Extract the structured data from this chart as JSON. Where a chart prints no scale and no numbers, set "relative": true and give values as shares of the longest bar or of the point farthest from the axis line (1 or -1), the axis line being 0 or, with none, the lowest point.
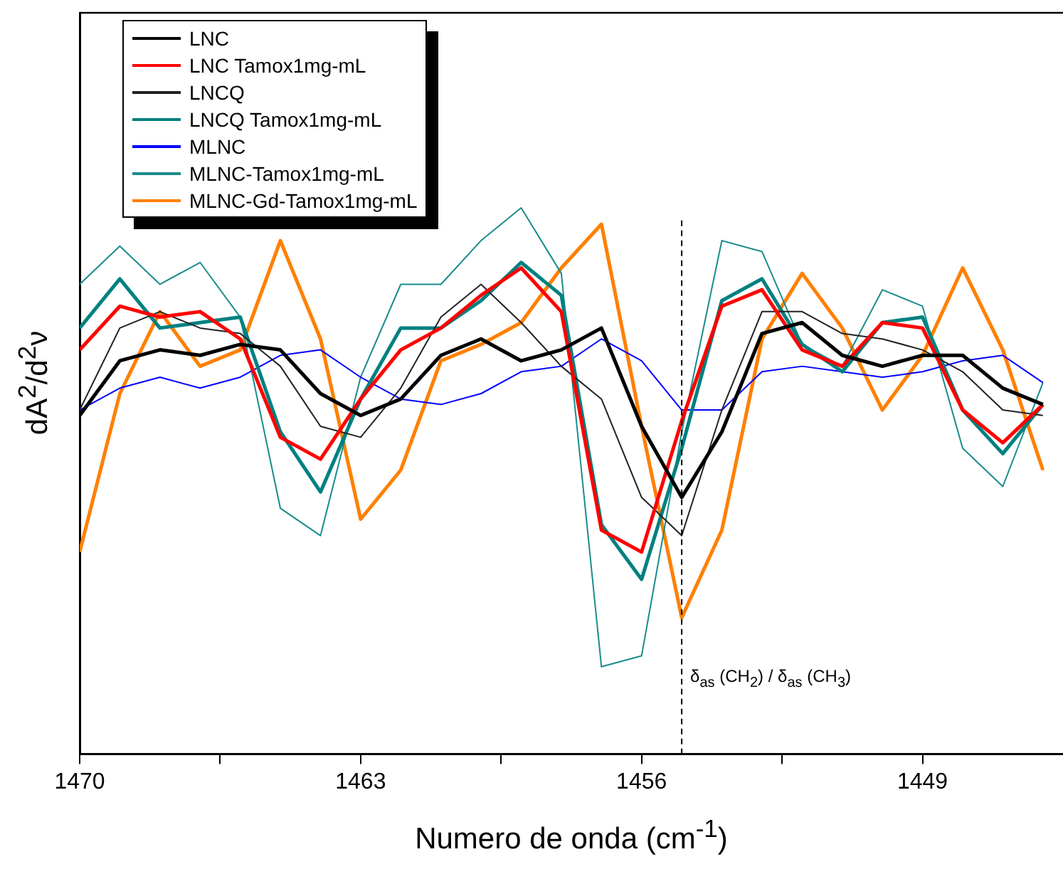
{
  "chart_data": {
    "type": "line",
    "relative": true,
    "xlabel": "Numero de onda (cm$^{-1}$)",
    "ylabel": "dA$^{2}$/d$^{2}$ν",
    "x": [
      1470,
      1469,
      1468,
      1467,
      1466,
      1465,
      1464,
      1463,
      1462,
      1461,
      1460,
      1459,
      1458,
      1457,
      1456,
      1455,
      1454,
      1453,
      1452,
      1451,
      1450,
      1449,
      1448,
      1447,
      1446
    ],
    "xlim": [
      1470,
      1445.5
    ],
    "xticks": [
      1470,
      {
        "value": 1466.5,
        "label": null
      },
      1463,
      {
        "value": 1459.5,
        "label": null
      },
      1456,
      {
        "value": 1452.5,
        "label": null
      },
      1449
    ],
    "legend": "top left",
    "grid": false,
    "marker": "none",
    "line_style": "solid",
    "ref_lines": [
      {
        "axis": "x",
        "value": 1455,
        "label": "δ$_{as}$ (CH$_{2}$) / δ$_{as}$ (CH$_{3}$)",
        "line_style": "dashed",
        "color": "#000000"
      }
    ],
    "series": [
      {
        "name": "LNC",
        "color": "#000000",
        "values": [
          0.62,
          0.72,
          0.74,
          0.73,
          0.75,
          0.74,
          0.66,
          0.62,
          0.65,
          0.73,
          0.76,
          0.72,
          0.74,
          0.78,
          0.6,
          0.47,
          0.59,
          0.77,
          0.79,
          0.73,
          0.71,
          0.73,
          0.73,
          0.67,
          0.64
        ]
      },
      {
        "name": "LNC Tamox1mg-mL",
        "color": "#ff0000",
        "values": [
          0.74,
          0.82,
          0.8,
          0.81,
          0.76,
          0.58,
          0.54,
          0.65,
          0.74,
          0.78,
          0.84,
          0.89,
          0.81,
          0.41,
          0.37,
          0.61,
          0.82,
          0.85,
          0.74,
          0.71,
          0.79,
          0.78,
          0.63,
          0.57,
          0.64
        ]
      },
      {
        "name": "LNCQ",
        "color": "#222222",
        "values": [
          0.63,
          0.78,
          0.81,
          0.78,
          0.77,
          0.71,
          0.6,
          0.58,
          0.67,
          0.8,
          0.86,
          0.79,
          0.71,
          0.65,
          0.47,
          0.4,
          0.63,
          0.81,
          0.81,
          0.77,
          0.76,
          0.74,
          0.7,
          0.63,
          0.62
        ]
      },
      {
        "name": "LNCQ Tamox1mg-mL",
        "color": "#008080",
        "values": [
          0.78,
          0.87,
          0.78,
          0.79,
          0.8,
          0.59,
          0.48,
          0.65,
          0.78,
          0.78,
          0.83,
          0.9,
          0.84,
          0.42,
          0.32,
          0.56,
          0.83,
          0.87,
          0.75,
          0.7,
          0.79,
          0.8,
          0.63,
          0.55,
          0.64
        ]
      },
      {
        "name": "MLNC",
        "color": "#0000ff",
        "values": [
          0.63,
          0.67,
          0.69,
          0.67,
          0.69,
          0.73,
          0.74,
          0.69,
          0.65,
          0.64,
          0.66,
          0.7,
          0.71,
          0.76,
          0.72,
          0.63,
          0.63,
          0.7,
          0.71,
          0.7,
          0.69,
          0.7,
          0.72,
          0.73,
          0.68
        ]
      },
      {
        "name": "MLNC-Tamox1mg-mL",
        "color": "#1a8c8c",
        "values": [
          0.86,
          0.93,
          0.86,
          0.9,
          0.8,
          0.45,
          0.4,
          0.69,
          0.86,
          0.86,
          0.94,
          1.0,
          0.88,
          0.16,
          0.18,
          0.59,
          0.94,
          0.92,
          0.75,
          0.71,
          0.85,
          0.82,
          0.56,
          0.49,
          0.68
        ]
      },
      {
        "name": "MLNC-Gd-Tamox1mg-mL",
        "color": "#ff8000",
        "values": [
          0.37,
          0.66,
          0.81,
          0.71,
          0.74,
          0.94,
          0.76,
          0.43,
          0.52,
          0.72,
          0.75,
          0.79,
          0.89,
          0.97,
          0.6,
          0.25,
          0.41,
          0.76,
          0.88,
          0.78,
          0.63,
          0.73,
          0.89,
          0.74,
          0.52
        ]
      }
    ]
  }
}
